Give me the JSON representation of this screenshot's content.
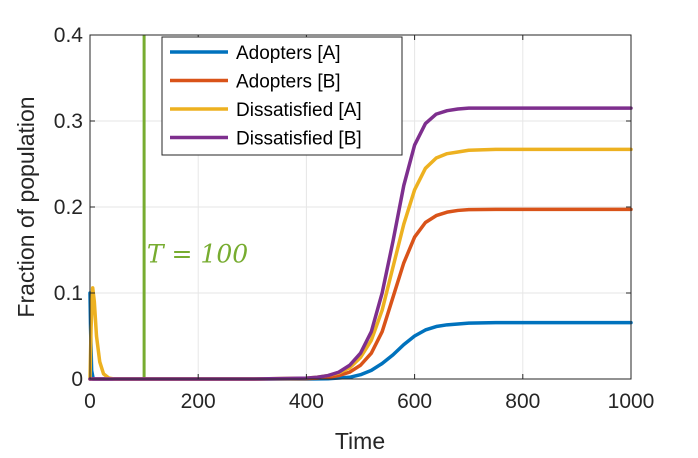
{
  "chart_data": {
    "type": "line",
    "title": "",
    "xlabel": "Time",
    "ylabel": "Fraction of population",
    "xlim": [
      0,
      1000
    ],
    "ylim": [
      0,
      0.4
    ],
    "xticks": [
      0,
      200,
      400,
      600,
      800,
      1000
    ],
    "yticks": [
      0,
      0.1,
      0.2,
      0.3,
      0.4
    ],
    "xtick_labels": [
      "0",
      "200",
      "400",
      "600",
      "800",
      "1000"
    ],
    "ytick_labels": [
      "0",
      "0.1",
      "0.2",
      "0.3",
      "0.4"
    ],
    "grid": true,
    "legend_position": "top",
    "series": [
      {
        "name": "Adopters [A]",
        "color": "#0072bd",
        "x": [
          0,
          1,
          3,
          6,
          10,
          40,
          100,
          300,
          400,
          440,
          480,
          500,
          520,
          540,
          560,
          580,
          600,
          620,
          640,
          660,
          680,
          700,
          750,
          800,
          900,
          1000
        ],
        "y": [
          0.1,
          0.06,
          0.01,
          0.0,
          0.0,
          0.0,
          0.0,
          0.0,
          0.0,
          0.0003,
          0.002,
          0.005,
          0.01,
          0.018,
          0.028,
          0.04,
          0.05,
          0.057,
          0.061,
          0.063,
          0.064,
          0.065,
          0.0655,
          0.0656,
          0.0656,
          0.0656
        ]
      },
      {
        "name": "Adopters [B]",
        "color": "#d95319",
        "x": [
          0,
          1,
          3,
          6,
          10,
          40,
          100,
          300,
          400,
          420,
          440,
          460,
          480,
          500,
          520,
          540,
          560,
          580,
          600,
          620,
          640,
          660,
          680,
          700,
          750,
          800,
          900,
          1000
        ],
        "y": [
          0.0,
          0.0,
          0.0,
          0.0,
          0.0,
          0.0,
          0.0,
          0.0,
          0.0005,
          0.001,
          0.002,
          0.004,
          0.008,
          0.016,
          0.03,
          0.055,
          0.095,
          0.135,
          0.165,
          0.182,
          0.19,
          0.194,
          0.196,
          0.197,
          0.1972,
          0.1972,
          0.1972,
          0.1972
        ]
      },
      {
        "name": "Dissatisfied [A]",
        "color": "#edb120",
        "x": [
          0,
          2,
          5,
          8,
          12,
          18,
          25,
          35,
          45,
          60,
          100,
          300,
          400,
          420,
          440,
          460,
          480,
          500,
          520,
          540,
          560,
          580,
          600,
          620,
          640,
          660,
          680,
          700,
          750,
          800,
          900,
          1000
        ],
        "y": [
          0.0,
          0.06,
          0.106,
          0.09,
          0.05,
          0.02,
          0.006,
          0.001,
          0.0,
          0.0,
          0.0,
          0.0,
          0.001,
          0.002,
          0.004,
          0.007,
          0.013,
          0.025,
          0.045,
          0.08,
          0.13,
          0.18,
          0.22,
          0.245,
          0.257,
          0.262,
          0.264,
          0.266,
          0.267,
          0.267,
          0.267,
          0.267
        ]
      },
      {
        "name": "Dissatisfied [B]",
        "color": "#7e2f8e",
        "x": [
          0,
          1,
          3,
          6,
          10,
          40,
          100,
          300,
          400,
          420,
          440,
          460,
          480,
          500,
          520,
          540,
          560,
          580,
          600,
          620,
          640,
          660,
          680,
          700,
          750,
          800,
          900,
          1000
        ],
        "y": [
          0.0,
          0.0,
          0.0,
          0.0,
          0.0,
          0.0,
          0.0,
          0.0,
          0.001,
          0.002,
          0.004,
          0.008,
          0.016,
          0.03,
          0.055,
          0.1,
          0.16,
          0.225,
          0.272,
          0.297,
          0.308,
          0.312,
          0.314,
          0.315,
          0.315,
          0.315,
          0.315,
          0.315
        ]
      }
    ],
    "vline": {
      "x": 100,
      "color": "#77ac30"
    },
    "annotation": {
      "text": "T = 100",
      "color": "#77ac30",
      "x": 120,
      "y": 0.145
    }
  }
}
